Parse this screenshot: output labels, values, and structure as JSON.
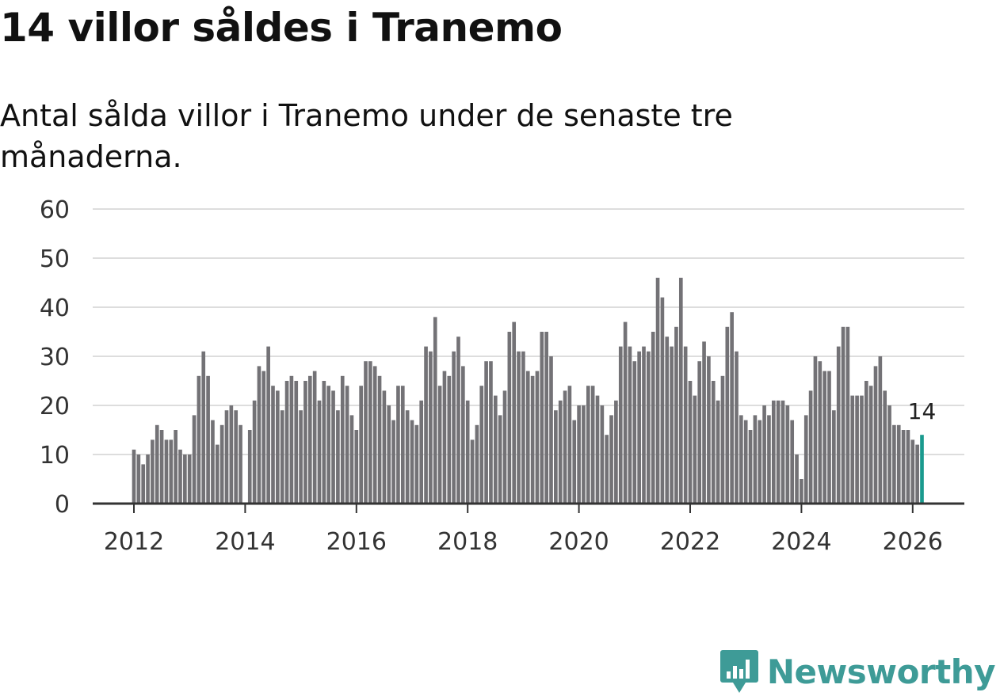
{
  "header": {
    "title": "14 villor såldes i Tranemo",
    "subtitle": "Antal sålda villor i Tranemo under de senaste tre månaderna."
  },
  "brand": {
    "name": "Newsworthy",
    "logo_icon": "bar-chart-speech-bubble-icon",
    "color": "#3e9b97"
  },
  "colors": {
    "bar": "#737276",
    "highlight": "#1a9a8e",
    "grid": "#dddddd",
    "axis": "#333333"
  },
  "chart_data": {
    "type": "bar",
    "title": "14 villor såldes i Tranemo",
    "subtitle": "Antal sålda villor i Tranemo under de senaste tre månaderna.",
    "xlabel": "",
    "ylabel": "",
    "ylim": [
      0,
      60
    ],
    "yticks": [
      0,
      10,
      20,
      30,
      40,
      50,
      60
    ],
    "xticks": [
      "2012",
      "2014",
      "2016",
      "2018",
      "2020",
      "2022",
      "2024",
      "2026"
    ],
    "x_start": "2012-01",
    "frequency": "monthly",
    "grid": true,
    "highlight_last": true,
    "last_value_label": "14",
    "values": [
      11,
      10,
      8,
      10,
      13,
      16,
      15,
      13,
      13,
      15,
      11,
      10,
      10,
      18,
      26,
      31,
      26,
      17,
      12,
      16,
      19,
      20,
      19,
      16,
      null,
      15,
      21,
      28,
      27,
      32,
      24,
      23,
      19,
      25,
      26,
      25,
      19,
      25,
      26,
      27,
      21,
      25,
      24,
      23,
      19,
      26,
      24,
      18,
      15,
      24,
      29,
      29,
      28,
      26,
      23,
      20,
      17,
      24,
      24,
      19,
      17,
      16,
      21,
      32,
      31,
      38,
      24,
      27,
      26,
      31,
      34,
      28,
      21,
      13,
      16,
      24,
      29,
      29,
      22,
      18,
      23,
      35,
      37,
      31,
      31,
      27,
      26,
      27,
      35,
      35,
      30,
      19,
      21,
      23,
      24,
      17,
      20,
      20,
      24,
      24,
      22,
      20,
      14,
      18,
      21,
      32,
      37,
      32,
      29,
      31,
      32,
      31,
      35,
      46,
      42,
      34,
      32,
      36,
      46,
      32,
      25,
      22,
      29,
      33,
      30,
      25,
      21,
      26,
      36,
      39,
      31,
      18,
      17,
      15,
      18,
      17,
      20,
      18,
      21,
      21,
      21,
      20,
      17,
      10,
      5,
      18,
      23,
      30,
      29,
      27,
      27,
      19,
      32,
      36,
      36,
      22,
      22,
      22,
      25,
      24,
      28,
      30,
      23,
      20,
      16,
      16,
      15,
      15,
      13,
      12,
      14
    ]
  }
}
